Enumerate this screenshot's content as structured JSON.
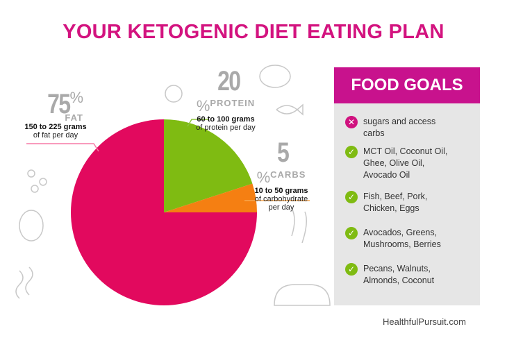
{
  "title": "YOUR KETOGENIC DIET EATING PLAN",
  "chart_data": {
    "type": "pie",
    "title": "YOUR KETOGENIC DIET EATING PLAN",
    "slices": [
      {
        "name": "PROTEIN",
        "value": 20,
        "percent_label": "20",
        "line1": "60 to 100 grams",
        "line2": "of protein per day",
        "color": "#7fbb12"
      },
      {
        "name": "CARBS",
        "value": 5,
        "percent_label": "5",
        "line1": "10 to 50 grams",
        "line2": "of carbohydrate",
        "line3": "per day",
        "color": "#f57f12"
      },
      {
        "name": "FAT",
        "value": 75,
        "percent_label": "75",
        "line1": "150 to 225 grams",
        "line2": "of fat per day",
        "color": "#e2095e"
      }
    ]
  },
  "percent_sign": "%",
  "food_goals": {
    "header": "FOOD GOALS",
    "items": [
      {
        "type": "avoid",
        "text1": "sugars and access",
        "text2": "carbs"
      },
      {
        "type": "eat",
        "text1": "MCT Oil, Coconut Oil,",
        "text2": "Ghee, Olive Oil,",
        "text3": "Avocado Oil"
      },
      {
        "type": "eat",
        "text1": "Fish, Beef, Pork,",
        "text2": "Chicken, Eggs"
      },
      {
        "type": "eat",
        "text1": "Avocados, Greens,",
        "text2": "Mushrooms, Berries"
      },
      {
        "type": "eat",
        "text1": "Pecans, Walnuts,",
        "text2": "Almonds, Coconut"
      }
    ],
    "avoid_color": "#d0127f",
    "eat_color": "#7fbb12"
  },
  "footer": "HealthfulPursuit.com"
}
